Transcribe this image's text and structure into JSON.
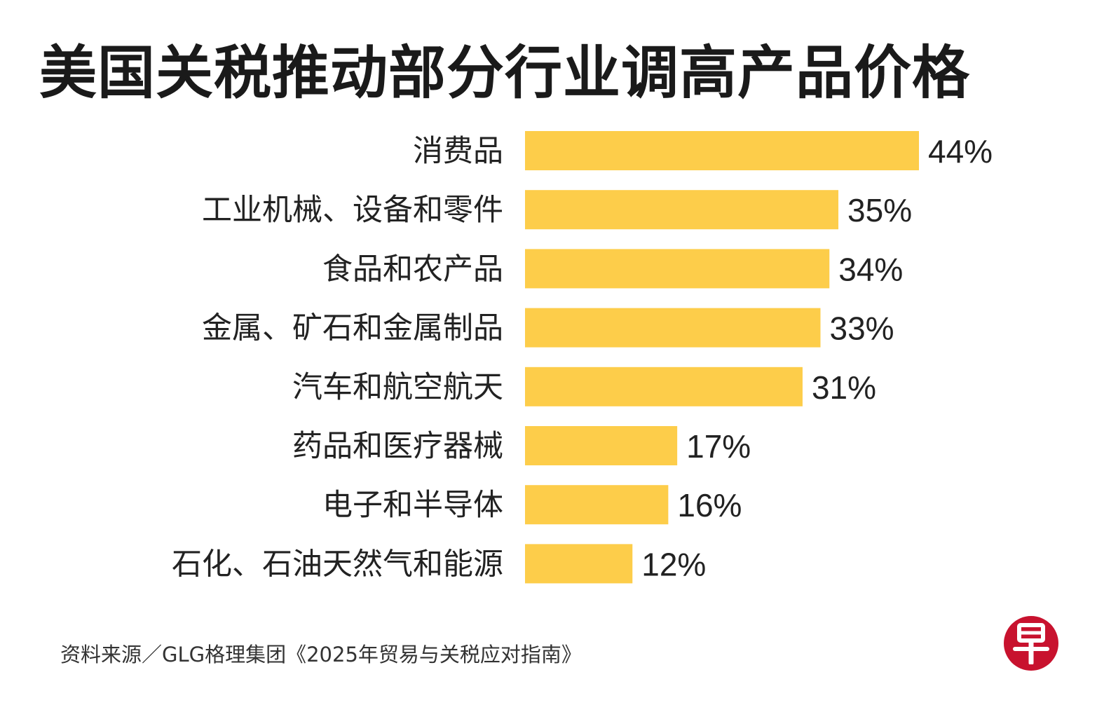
{
  "title": "美国关税推动部分行业调高产品价格",
  "source": "资料来源／GLG格理集团《2025年贸易与关税应对指南》",
  "logo": {
    "text": "早",
    "icon": "zaobao-logo-icon",
    "color": "#c8122e"
  },
  "colors": {
    "bar": "#fdcd4a",
    "text": "#222222"
  },
  "chart_data": {
    "type": "bar",
    "orientation": "horizontal",
    "title": "美国关税推动部分行业调高产品价格",
    "categories": [
      "消费品",
      "工业机械、设备和零件",
      "食品和农产品",
      "金属、矿石和金属制品",
      "汽车和航空航天",
      "药品和医疗器械",
      "电子和半导体",
      "石化、石油天然气和能源"
    ],
    "values": [
      44,
      35,
      34,
      33,
      31,
      17,
      16,
      12
    ],
    "value_labels": [
      "44%",
      "35%",
      "34%",
      "33%",
      "31%",
      "17%",
      "16%",
      "12%"
    ],
    "unit": "%",
    "xlim": [
      0,
      44
    ],
    "grid": false,
    "legend": "none"
  }
}
